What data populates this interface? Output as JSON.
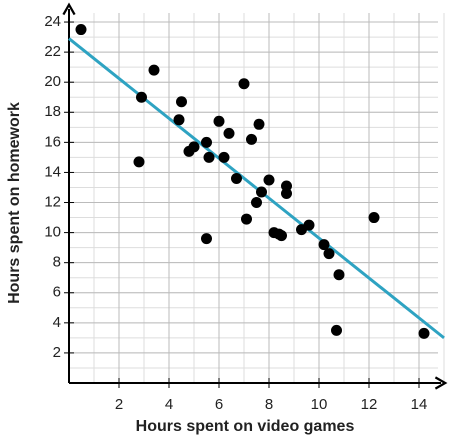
{
  "chart_data": {
    "type": "scatter",
    "x_label": "Hours spent on video games",
    "y_label": "Hours spent on homework",
    "xlim": [
      0,
      15
    ],
    "ylim": [
      0,
      25
    ],
    "xticks": [
      2,
      4,
      6,
      8,
      10,
      12,
      14
    ],
    "yticks": [
      2,
      4,
      6,
      8,
      10,
      12,
      14,
      16,
      18,
      20,
      22,
      24
    ],
    "grid": true,
    "minor_grid": 1,
    "color": "#000000",
    "x": [
      0.48,
      3.4,
      2.9,
      2.8,
      4.5,
      4.4,
      7.0,
      6.0,
      7.6,
      6.4,
      7.3,
      5.5,
      5.0,
      4.8,
      5.6,
      6.2,
      6.7,
      8.0,
      8.7,
      8.7,
      7.7,
      7.5,
      7.1,
      5.5,
      8.2,
      8.4,
      8.5,
      9.3,
      9.6,
      10.2,
      10.4,
      10.8,
      12.2,
      10.7,
      14.2
    ],
    "values": [
      23.5,
      20.8,
      19.0,
      14.7,
      18.7,
      17.5,
      19.9,
      17.4,
      17.2,
      16.6,
      16.2,
      16.0,
      15.7,
      15.4,
      15.0,
      15.0,
      13.6,
      13.5,
      13.1,
      12.6,
      12.7,
      12.0,
      10.9,
      9.6,
      10.0,
      9.9,
      9.8,
      10.2,
      10.5,
      9.2,
      8.6,
      7.2,
      11.0,
      3.5,
      3.3
    ],
    "trend_line": {
      "x": [
        0,
        15
      ],
      "values": [
        22.9,
        3.0
      ],
      "color": "#2ea3c2"
    }
  }
}
